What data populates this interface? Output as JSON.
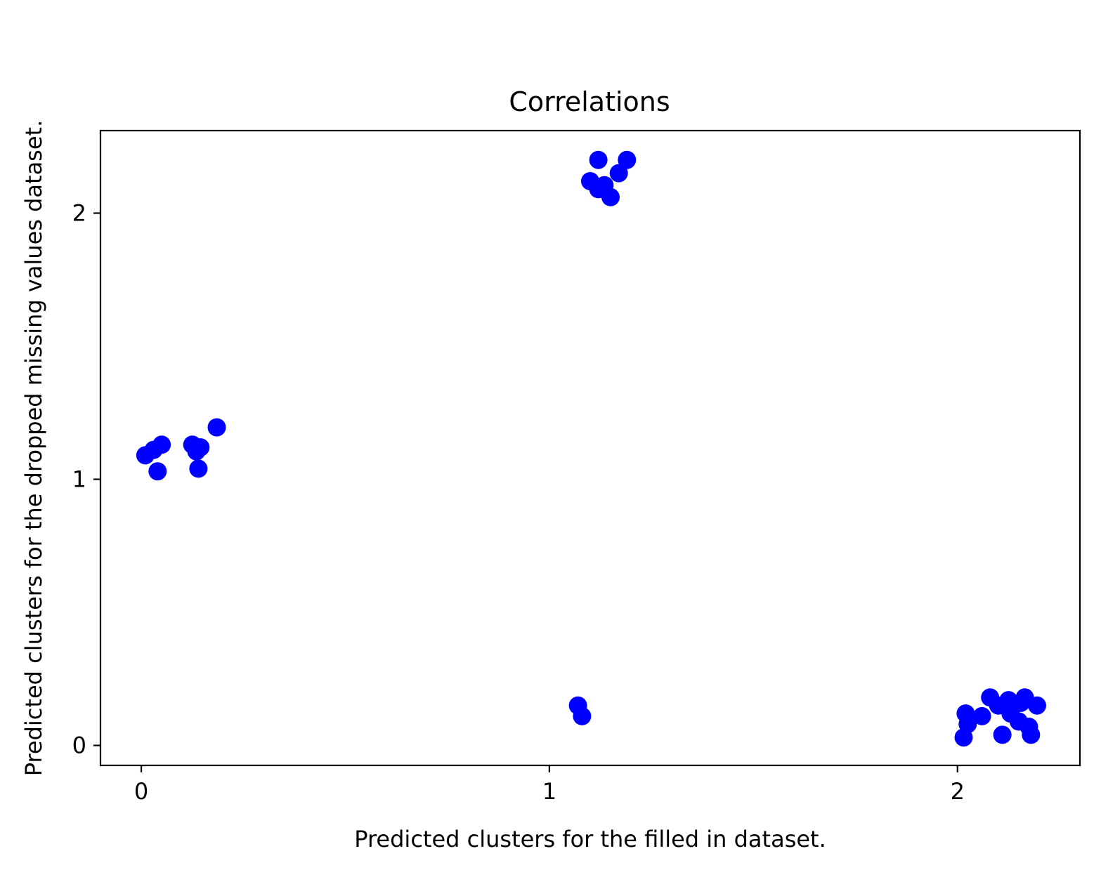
{
  "chart_data": {
    "type": "scatter",
    "title": "Correlations",
    "xlabel": "Predicted clusters for the filled in dataset.",
    "ylabel": "Predicted clusters for the dropped missing values dataset.",
    "xlim": [
      -0.1,
      2.3
    ],
    "ylim": [
      -0.075,
      2.31
    ],
    "xticks": [
      0,
      1,
      2
    ],
    "xtick_labels": [
      "0",
      "1",
      "2"
    ],
    "yticks": [
      0,
      1,
      2
    ],
    "ytick_labels": [
      "0",
      "1",
      "2"
    ],
    "grid": false,
    "legend": false,
    "marker_color": "#0000ff",
    "points": [
      {
        "x": 0.01,
        "y": 1.09
      },
      {
        "x": 0.03,
        "y": 1.11
      },
      {
        "x": 0.05,
        "y": 1.13
      },
      {
        "x": 0.04,
        "y": 1.03
      },
      {
        "x": 0.125,
        "y": 1.13
      },
      {
        "x": 0.135,
        "y": 1.105
      },
      {
        "x": 0.145,
        "y": 1.12
      },
      {
        "x": 0.14,
        "y": 1.04
      },
      {
        "x": 0.185,
        "y": 1.195
      },
      {
        "x": 1.1,
        "y": 2.12
      },
      {
        "x": 1.12,
        "y": 2.2
      },
      {
        "x": 1.12,
        "y": 2.09
      },
      {
        "x": 1.135,
        "y": 2.105
      },
      {
        "x": 1.15,
        "y": 2.06
      },
      {
        "x": 1.17,
        "y": 2.15
      },
      {
        "x": 1.19,
        "y": 2.2
      },
      {
        "x": 1.07,
        "y": 0.15
      },
      {
        "x": 1.08,
        "y": 0.11
      },
      {
        "x": 2.015,
        "y": 0.03
      },
      {
        "x": 2.02,
        "y": 0.12
      },
      {
        "x": 2.025,
        "y": 0.08
      },
      {
        "x": 2.06,
        "y": 0.11
      },
      {
        "x": 2.08,
        "y": 0.18
      },
      {
        "x": 2.1,
        "y": 0.15
      },
      {
        "x": 2.11,
        "y": 0.04
      },
      {
        "x": 2.125,
        "y": 0.17
      },
      {
        "x": 2.13,
        "y": 0.12
      },
      {
        "x": 2.15,
        "y": 0.09
      },
      {
        "x": 2.155,
        "y": 0.16
      },
      {
        "x": 2.165,
        "y": 0.18
      },
      {
        "x": 2.175,
        "y": 0.07
      },
      {
        "x": 2.18,
        "y": 0.04
      },
      {
        "x": 2.195,
        "y": 0.15
      }
    ]
  }
}
